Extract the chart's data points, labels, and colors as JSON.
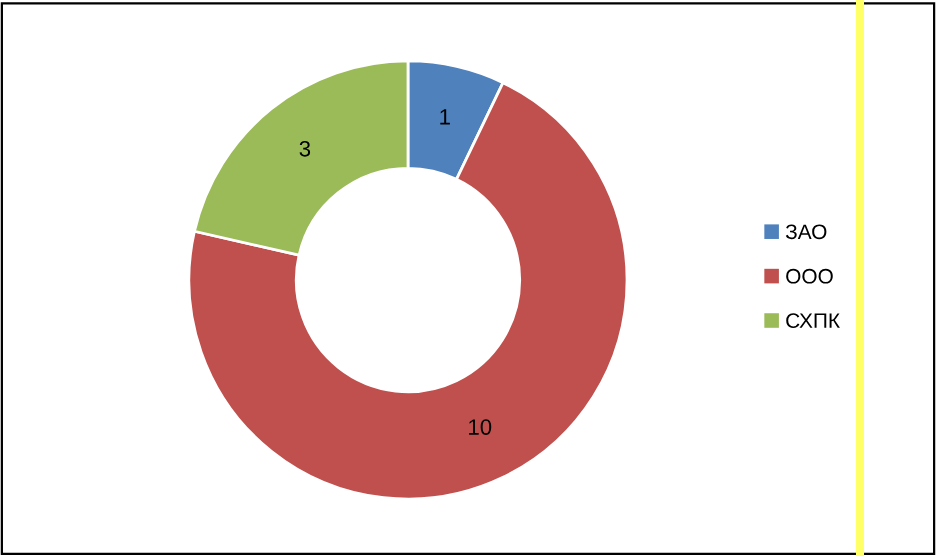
{
  "chart_data": {
    "type": "donut",
    "categories": [
      "ЗАО",
      "ООО",
      "СХПК"
    ],
    "values": [
      1,
      10,
      3
    ],
    "colors": [
      "#4f81bd",
      "#c0504d",
      "#9bbb59"
    ],
    "data_labels": true,
    "legend": "right"
  }
}
